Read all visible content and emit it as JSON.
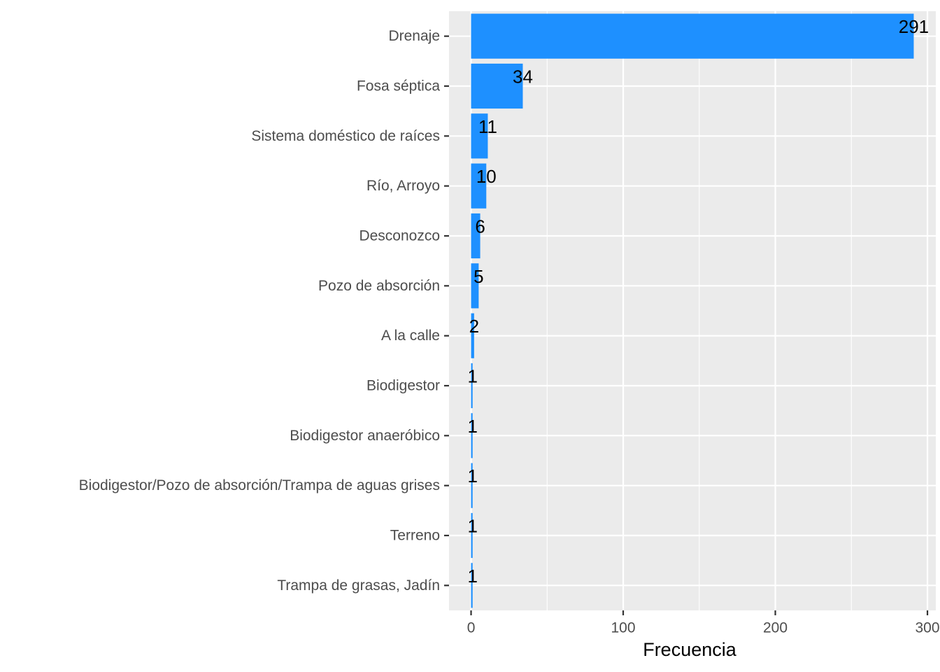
{
  "chart_data": {
    "type": "bar",
    "orientation": "horizontal",
    "categories": [
      "Drenaje",
      "Fosa séptica",
      "Sistema doméstico de raíces",
      "Río, Arroyo",
      "Desconozco",
      "Pozo de absorción",
      "A la calle",
      "Biodigestor",
      "Biodigestor anaeróbico",
      "Biodigestor/Pozo de absorción/Trampa de aguas grises",
      "Terreno",
      "Trampa de grasas, Jadín"
    ],
    "values": [
      291,
      34,
      11,
      10,
      6,
      5,
      2,
      1,
      1,
      1,
      1,
      1
    ],
    "xlabel": "Frecuencia",
    "ylabel": "",
    "xlim": [
      -14.5,
      305.5
    ],
    "xticks": [
      0,
      100,
      200,
      300
    ],
    "grid": true,
    "bar_color": "#1E90FF",
    "panel_color": "#EBEBEB",
    "grid_color": "#FFFFFF",
    "data_labels": true
  }
}
